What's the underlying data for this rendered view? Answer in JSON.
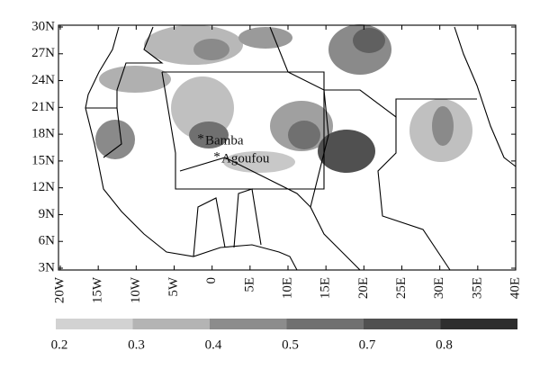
{
  "map": {
    "yticks": [
      "30N",
      "27N",
      "24N",
      "21N",
      "18N",
      "15N",
      "12N",
      "9N",
      "6N",
      "3N"
    ],
    "xticks": [
      "20W",
      "15W",
      "10W",
      "5W",
      "0",
      "5E",
      "10E",
      "15E",
      "20E",
      "25E",
      "30E",
      "35E",
      "40E"
    ],
    "colorbar": {
      "labels": [
        "0.2",
        "0.3",
        "0.4",
        "0.5",
        "0.7",
        "0.8"
      ]
    },
    "sites": [
      {
        "label": "Bamba"
      },
      {
        "label": "Agoufou"
      }
    ]
  }
}
